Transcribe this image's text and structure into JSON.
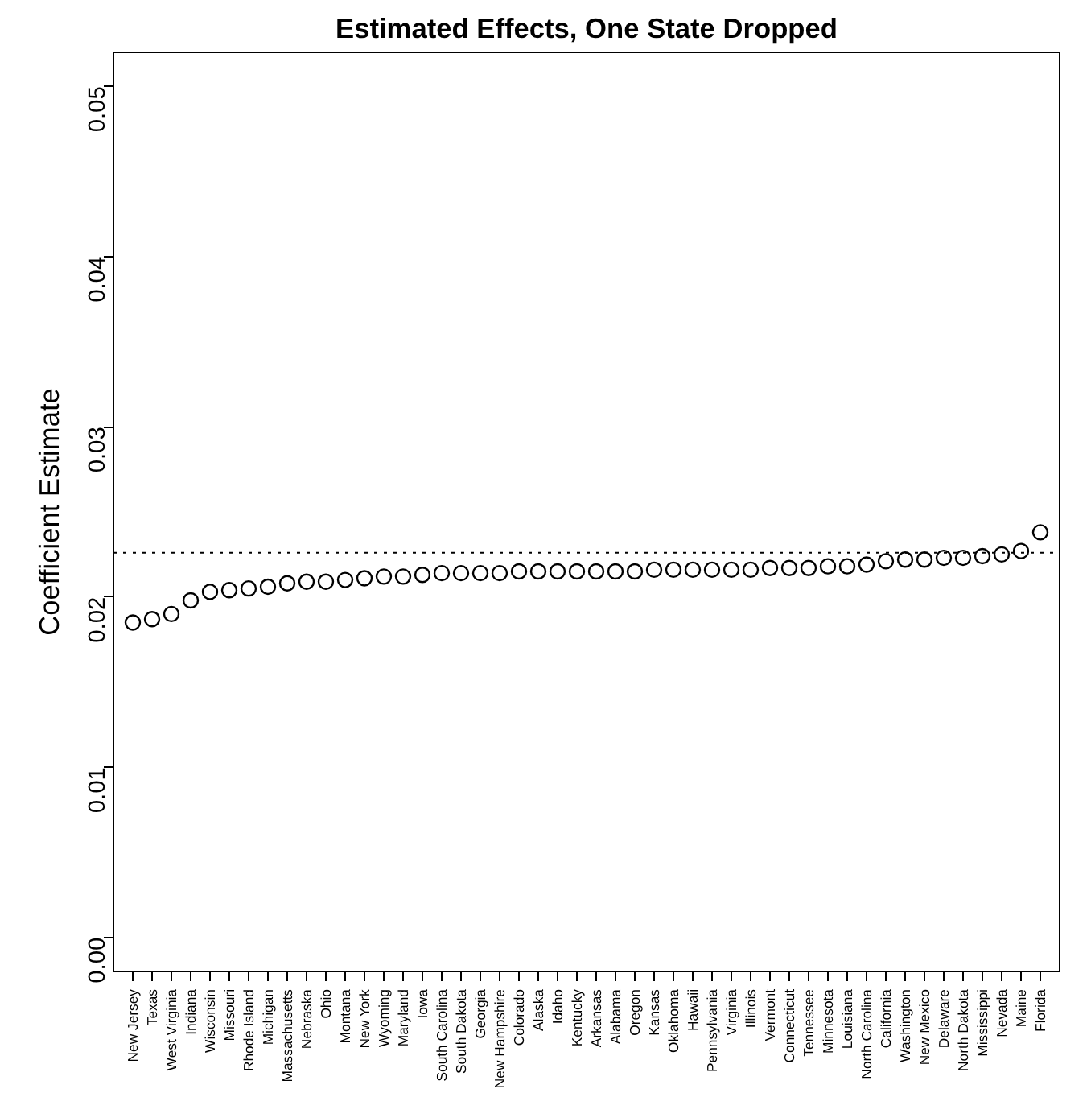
{
  "chart_data": {
    "type": "scatter",
    "title": "Estimated Effects, One State Dropped",
    "ylabel": "Coefficient Estimate",
    "categories": [
      "New Jersey",
      "Texas",
      "West Virginia",
      "Indiana",
      "Wisconsin",
      "Missouri",
      "Rhode Island",
      "Michigan",
      "Massachusetts",
      "Nebraska",
      "Ohio",
      "Montana",
      "New York",
      "Wyoming",
      "Maryland",
      "Iowa",
      "South Carolina",
      "South Dakota",
      "Georgia",
      "New Hampshire",
      "Colorado",
      "Alaska",
      "Idaho",
      "Kentucky",
      "Arkansas",
      "Alabama",
      "Oregon",
      "Kansas",
      "Oklahoma",
      "Hawaii",
      "Pennsylvania",
      "Virginia",
      "Illinois",
      "Vermont",
      "Connecticut",
      "Tennessee",
      "Minnesota",
      "Louisiana",
      "North Carolina",
      "California",
      "Washington",
      "New Mexico",
      "Delaware",
      "North Dakota",
      "Mississippi",
      "Nevada",
      "Maine",
      "Florida"
    ],
    "series": [
      {
        "color": "#000000",
        "values": [
          0.0185,
          0.0187,
          0.019,
          0.0198,
          0.0203,
          0.0204,
          0.0205,
          0.0206,
          0.0208,
          0.0209,
          0.0209,
          0.021,
          0.0211,
          0.0212,
          0.0212,
          0.0213,
          0.0214,
          0.0214,
          0.0214,
          0.0214,
          0.0215,
          0.0215,
          0.0215,
          0.0215,
          0.0215,
          0.0215,
          0.0215,
          0.0216,
          0.0216,
          0.0216,
          0.0216,
          0.0216,
          0.0216,
          0.0217,
          0.0217,
          0.0217,
          0.0218,
          0.0218,
          0.0219,
          0.0221,
          0.0222,
          0.0222,
          0.0223,
          0.0223,
          0.0224,
          0.0225,
          0.0227,
          0.0238
        ]
      }
    ],
    "ylim": [
      -0.002,
      0.052
    ],
    "yticks": [
      {
        "value": 0,
        "label": "0.00"
      },
      {
        "value": 0.01,
        "label": "0.01"
      },
      {
        "value": 0.02,
        "label": "0.02"
      },
      {
        "value": 0.03,
        "label": "0.03"
      },
      {
        "value": 0.04,
        "label": "0.04"
      },
      {
        "value": 0.05,
        "label": "0.05"
      }
    ],
    "ref_lines": [
      {
        "axis": "y",
        "value": 0.0226,
        "line_style": "dotted",
        "color": "#000000"
      }
    ],
    "marker": "circle",
    "grid": false
  }
}
